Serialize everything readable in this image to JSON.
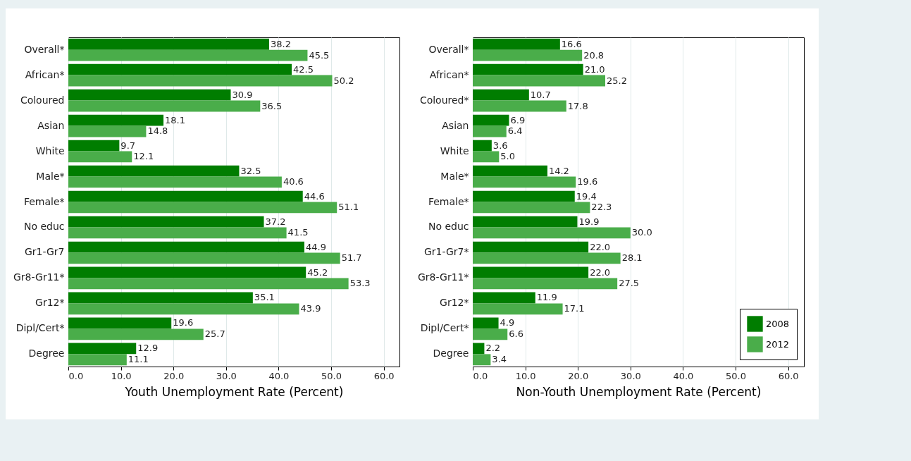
{
  "chart_data": [
    {
      "type": "bar",
      "orientation": "horizontal",
      "xlabel": "Youth Unemployment Rate (Percent)",
      "categories": [
        "Overall*",
        "African*",
        "Coloured",
        "Asian",
        "White",
        "Male*",
        "Female*",
        "No educ",
        "Gr1-Gr7",
        "Gr8-Gr11*",
        "Gr12*",
        "Dipl/Cert*",
        "Degree"
      ],
      "series": [
        {
          "color": "#007d00",
          "values": [
            38.2,
            42.5,
            30.9,
            18.1,
            9.7,
            32.5,
            44.6,
            37.2,
            44.9,
            45.2,
            35.1,
            19.6,
            12.9
          ],
          "value_labels": [
            "38.2",
            "42.5",
            "30.9",
            "18.1",
            "9.7",
            "32.5",
            "44.6",
            "37.2",
            "44.9",
            "45.2",
            "35.1",
            "19.6",
            "12.9"
          ]
        },
        {
          "color": "#4aad4a",
          "values": [
            45.5,
            50.2,
            36.5,
            14.8,
            12.1,
            40.6,
            51.1,
            41.5,
            51.7,
            53.3,
            43.9,
            25.7,
            11.1
          ],
          "value_labels": [
            "45.5",
            "50.2",
            "36.5",
            "14.8",
            "12.1",
            "40.6",
            "51.1",
            "41.5",
            "51.7",
            "53.3",
            "43.9",
            "25.7",
            "11.1"
          ]
        }
      ],
      "xlim": [
        0,
        63
      ],
      "xticks": [
        {
          "value": 0,
          "label": "0.0"
        },
        {
          "value": 10,
          "label": "10.0"
        },
        {
          "value": 20,
          "label": "20.0"
        },
        {
          "value": 30,
          "label": "30.0"
        },
        {
          "value": 40,
          "label": "40.0"
        },
        {
          "value": 50,
          "label": "50.0"
        },
        {
          "value": 60,
          "label": "60.0"
        }
      ],
      "grid": "x",
      "legend": false
    },
    {
      "type": "bar",
      "orientation": "horizontal",
      "xlabel": "Non-Youth Unemployment Rate (Percent)",
      "categories": [
        "Overall*",
        "African*",
        "Coloured*",
        "Asian",
        "White",
        "Male*",
        "Female*",
        "No educ",
        "Gr1-Gr7*",
        "Gr8-Gr11*",
        "Gr12*",
        "Dipl/Cert*",
        "Degree"
      ],
      "series": [
        {
          "name": "2008",
          "color": "#007d00",
          "values": [
            16.6,
            21.0,
            10.7,
            6.9,
            3.6,
            14.2,
            19.4,
            19.9,
            22.0,
            22.0,
            11.9,
            4.9,
            2.2
          ],
          "value_labels": [
            "16.6",
            "21.0",
            "10.7",
            "6.9",
            "3.6",
            "14.2",
            "19.4",
            "19.9",
            "22.0",
            "22.0",
            "11.9",
            "4.9",
            "2.2"
          ]
        },
        {
          "name": "2012",
          "color": "#4aad4a",
          "values": [
            20.8,
            25.2,
            17.8,
            6.4,
            5.0,
            19.6,
            22.3,
            30.0,
            28.1,
            27.5,
            17.1,
            6.6,
            3.4
          ],
          "value_labels": [
            "20.8",
            "25.2",
            "17.8",
            "6.4",
            "5.0",
            "19.6",
            "22.3",
            "30.0",
            "28.1",
            "27.5",
            "17.1",
            "6.6",
            "3.4"
          ]
        }
      ],
      "xlim": [
        0,
        63
      ],
      "xticks": [
        {
          "value": 0,
          "label": "0.0"
        },
        {
          "value": 10,
          "label": "10.0"
        },
        {
          "value": 20,
          "label": "20.0"
        },
        {
          "value": 30,
          "label": "30.0"
        },
        {
          "value": 40,
          "label": "40.0"
        },
        {
          "value": 50,
          "label": "50.0"
        },
        {
          "value": 60,
          "label": "60.0"
        }
      ],
      "grid": "x",
      "legend": "bottom right"
    }
  ]
}
